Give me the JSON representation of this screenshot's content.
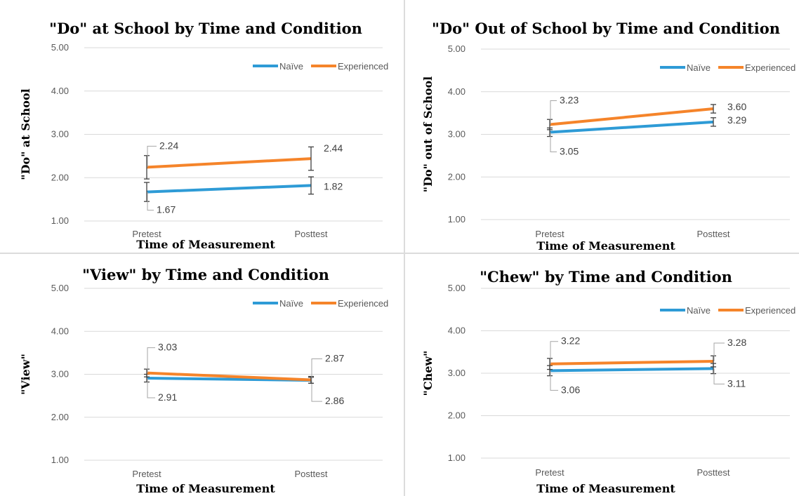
{
  "colors": {
    "naive": "#2E9BD6",
    "experienced": "#F5842A",
    "grid": "#d9d9d9",
    "error": "#404040"
  },
  "chart_data": [
    {
      "type": "line",
      "title": "\"Do\" at School by Time and Condition",
      "xlabel": "Time of Measurement",
      "ylabel": "\"Do\" at School",
      "categories": [
        "Pretest",
        "Posttest"
      ],
      "ylim": [
        1.0,
        5.0
      ],
      "yticks": [
        "1.00",
        "2.00",
        "3.00",
        "4.00",
        "5.00"
      ],
      "legend": "top-right",
      "series": [
        {
          "name": "Naïve",
          "values": [
            1.67,
            1.82
          ],
          "labels": [
            "1.67",
            "1.82"
          ],
          "error": [
            0.22,
            0.2
          ]
        },
        {
          "name": "Experienced",
          "values": [
            2.24,
            2.44
          ],
          "labels": [
            "2.24",
            "2.44"
          ],
          "error": [
            0.27,
            0.27
          ]
        }
      ]
    },
    {
      "type": "line",
      "title": "\"Do\" Out of School by Time and Condition",
      "xlabel": "Time of Measurement",
      "ylabel": "\"Do\" out of School",
      "categories": [
        "Pretest",
        "Posttest"
      ],
      "ylim": [
        1.0,
        5.0
      ],
      "yticks": [
        "1.00",
        "2.00",
        "3.00",
        "4.00",
        "5.00"
      ],
      "legend": "top-right",
      "series": [
        {
          "name": "Naïve",
          "values": [
            3.05,
            3.29
          ],
          "labels": [
            "3.05",
            "3.29"
          ],
          "error": [
            0.1,
            0.1
          ]
        },
        {
          "name": "Experienced",
          "values": [
            3.23,
            3.6
          ],
          "labels": [
            "3.23",
            "3.60"
          ],
          "error": [
            0.12,
            0.1
          ]
        }
      ]
    },
    {
      "type": "line",
      "title": "\"View\" by Time and Condition",
      "xlabel": "Time of Measurement",
      "ylabel": "\"View\"",
      "categories": [
        "Pretest",
        "Posttest"
      ],
      "ylim": [
        1.0,
        5.0
      ],
      "yticks": [
        "1.00",
        "2.00",
        "3.00",
        "4.00",
        "5.00"
      ],
      "legend": "top-right",
      "series": [
        {
          "name": "Naïve",
          "values": [
            2.91,
            2.86
          ],
          "labels": [
            "2.91",
            "2.86"
          ],
          "error": [
            0.09,
            0.07
          ]
        },
        {
          "name": "Experienced",
          "values": [
            3.03,
            2.87
          ],
          "labels": [
            "3.03",
            "2.87"
          ],
          "error": [
            0.09,
            0.08
          ]
        }
      ]
    },
    {
      "type": "line",
      "title": "\"Chew\" by Time and Condition",
      "xlabel": "Time of Measurement",
      "ylabel": "\"Chew\"",
      "categories": [
        "Pretest",
        "Posttest"
      ],
      "ylim": [
        1.0,
        5.0
      ],
      "yticks": [
        "1.00",
        "2.00",
        "3.00",
        "4.00",
        "5.00"
      ],
      "legend": "top-right",
      "series": [
        {
          "name": "Naïve",
          "values": [
            3.06,
            3.11
          ],
          "labels": [
            "3.06",
            "3.11"
          ],
          "error": [
            0.12,
            0.12
          ]
        },
        {
          "name": "Experienced",
          "values": [
            3.22,
            3.28
          ],
          "labels": [
            "3.22",
            "3.28"
          ],
          "error": [
            0.13,
            0.13
          ]
        }
      ]
    }
  ]
}
